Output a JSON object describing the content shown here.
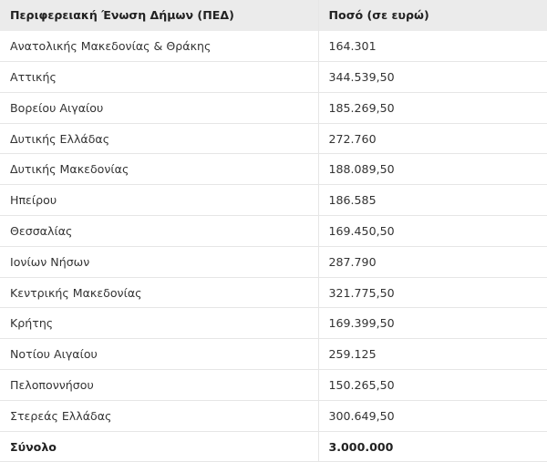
{
  "table": {
    "headers": [
      "Περιφερειακή Ένωση Δήμων (ΠΕΔ)",
      "Ποσό (σε ευρώ)"
    ],
    "rows": [
      [
        "Ανατολικής Μακεδονίας & Θράκης",
        "164.301"
      ],
      [
        "Αττικής",
        "344.539,50"
      ],
      [
        "Βορείου Αιγαίου",
        "185.269,50"
      ],
      [
        "Δυτικής Ελλάδας",
        "272.760"
      ],
      [
        "Δυτικής Μακεδονίας",
        "188.089,50"
      ],
      [
        "Ηπείρου",
        "186.585"
      ],
      [
        "Θεσσαλίας",
        "169.450,50"
      ],
      [
        "Ιονίων Νήσων",
        "287.790"
      ],
      [
        "Κεντρικής Μακεδονίας",
        "321.775,50"
      ],
      [
        "Κρήτης",
        "169.399,50"
      ],
      [
        "Νοτίου Αιγαίου",
        "259.125"
      ],
      [
        "Πελοποννήσου",
        "150.265,50"
      ],
      [
        "Στερεάς Ελλάδας",
        "300.649,50"
      ]
    ],
    "total": [
      "Σύνολο",
      "3.000.000"
    ]
  }
}
